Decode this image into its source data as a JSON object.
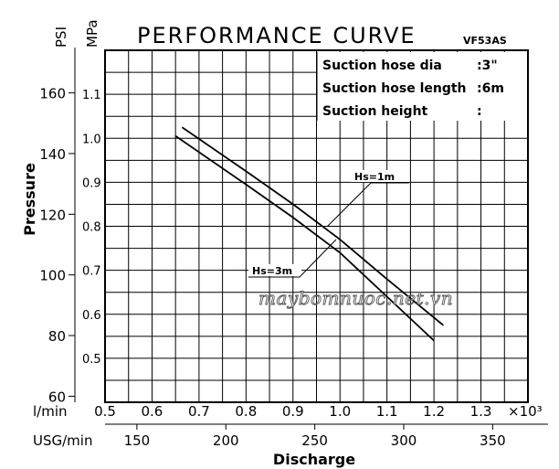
{
  "chart_data": {
    "type": "line",
    "title": "PERFORMANCE CURVE",
    "model": "VF53AS",
    "y_axis_left": {
      "label": "Pressure",
      "unit_psi": "PSI",
      "unit_mpa": "MPa",
      "psi_ticks": [
        "160",
        "140",
        "120",
        "100",
        "80",
        "60"
      ],
      "psi_values": [
        160,
        140,
        120,
        100,
        80,
        60
      ],
      "mpa_ticks": [
        "1.1",
        "1.0",
        "0.9",
        "0.8",
        "0.7",
        "0.6",
        "0.5"
      ],
      "mpa_values": [
        1.1,
        1.0,
        0.9,
        0.8,
        0.7,
        0.6,
        0.5
      ],
      "mpa_range": [
        0.4,
        1.2
      ]
    },
    "x_axis": {
      "label": "Discharge",
      "unit_lmin": "l/min",
      "multiplier": "×10³",
      "lmin_ticks": [
        "0.5",
        "0.6",
        "0.7",
        "0.8",
        "0.9",
        "1.0",
        "1.1",
        "1.2",
        "1.3"
      ],
      "lmin_values": [
        0.5,
        0.6,
        0.7,
        0.8,
        0.9,
        1.0,
        1.1,
        1.2,
        1.3
      ],
      "lmin_range": [
        0.5,
        1.4
      ],
      "unit_usg": "USG/min",
      "usg_ticks": [
        "150",
        "200",
        "250",
        "300",
        "350"
      ],
      "usg_values": [
        150,
        200,
        250,
        300,
        350
      ]
    },
    "info_rows": [
      {
        "label": "Suction hose dia",
        "value": ":3\""
      },
      {
        "label": "Suction hose length",
        "value": ":6m"
      },
      {
        "label": "Suction height",
        "value": ":"
      }
    ],
    "series": [
      {
        "name": "Hs=1m",
        "x": [
          0.664,
          0.8,
          0.9,
          1.0,
          1.1,
          1.22
        ],
        "y": [
          1.025,
          0.925,
          0.85,
          0.77,
          0.68,
          0.575
        ]
      },
      {
        "name": "Hs=3m",
        "x": [
          0.65,
          0.8,
          0.9,
          1.0,
          1.1,
          1.2
        ],
        "y": [
          1.005,
          0.895,
          0.82,
          0.74,
          0.64,
          0.54
        ]
      }
    ],
    "grid": true
  },
  "watermark": "maybomnuoc.net.vn"
}
